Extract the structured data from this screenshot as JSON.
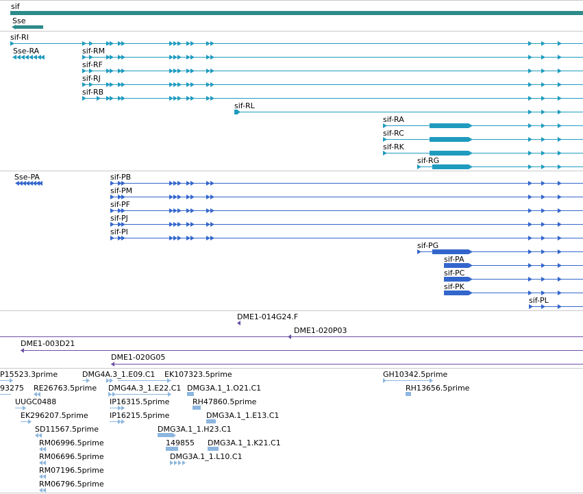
{
  "colors": {
    "gene": "#2e8b8b",
    "transcript": "#1f9bbf",
    "protein": "#3366cc",
    "bac": "#6a4fa3",
    "est": "#8cb6df",
    "separator": "#c8c8c8"
  },
  "genes": [
    {
      "label": "sif",
      "strand": "+"
    },
    {
      "label": "Sse",
      "strand": "-"
    }
  ],
  "transcripts": [
    {
      "label": "sif-RI",
      "strand": "+"
    },
    {
      "label": "Sse-RA",
      "strand": "-"
    },
    {
      "label": "sif-RM",
      "strand": "+"
    },
    {
      "label": "sif-RF",
      "strand": "+"
    },
    {
      "label": "sif-RJ",
      "strand": "+"
    },
    {
      "label": "sif-RB",
      "strand": "+"
    },
    {
      "label": "sif-RL",
      "strand": "+"
    },
    {
      "label": "sif-RA",
      "strand": "+"
    },
    {
      "label": "sif-RC",
      "strand": "+"
    },
    {
      "label": "sif-RK",
      "strand": "+"
    },
    {
      "label": "sif-RG",
      "strand": "+"
    }
  ],
  "proteins": [
    {
      "label": "Sse-PA",
      "strand": "-"
    },
    {
      "label": "sif-PB",
      "strand": "+"
    },
    {
      "label": "sif-PM",
      "strand": "+"
    },
    {
      "label": "sif-PF",
      "strand": "+"
    },
    {
      "label": "sif-PJ",
      "strand": "+"
    },
    {
      "label": "sif-PI",
      "strand": "+"
    },
    {
      "label": "sif-PG",
      "strand": "+"
    },
    {
      "label": "sif-PA",
      "strand": "+"
    },
    {
      "label": "sif-PC",
      "strand": "+"
    },
    {
      "label": "sif-PK",
      "strand": "+"
    },
    {
      "label": "sif-PL",
      "strand": "+"
    }
  ],
  "bacs": [
    {
      "label": "DME1-014G24.F",
      "strand": "-"
    },
    {
      "label": "DME1-020P03",
      "strand": "-"
    },
    {
      "label": "DME1-003D21",
      "strand": "-"
    },
    {
      "label": "DME1-020G05",
      "strand": "-"
    }
  ],
  "ests": [
    {
      "label": "P15523.3prime"
    },
    {
      "label": "DMG4A.3_1.E09.C1"
    },
    {
      "label": "EK107323.5prime"
    },
    {
      "label": "GH10342.5prime"
    },
    {
      "label": "93275"
    },
    {
      "label": "RE26763.5prime"
    },
    {
      "label": "DMG4A.3_1.E22.C1"
    },
    {
      "label": "DMG3A.1_1.O21.C1"
    },
    {
      "label": "RH13656.5prime"
    },
    {
      "label": "UUGC0488"
    },
    {
      "label": "IP16315.5prime"
    },
    {
      "label": "RH47860.5prime"
    },
    {
      "label": "EK296207.5prime"
    },
    {
      "label": "IP16215.5prime"
    },
    {
      "label": "DMG3A.1_1.E13.C1"
    },
    {
      "label": "SD11567.5prime"
    },
    {
      "label": "DMG3A.1_1.H23.C1"
    },
    {
      "label": "RM06996.5prime"
    },
    {
      "label": "149855"
    },
    {
      "label": "DMG3A.1_1.K21.C1"
    },
    {
      "label": "RM06696.5prime"
    },
    {
      "label": "DMG3A.1_1.L10.C1"
    },
    {
      "label": "RM07196.5prime"
    },
    {
      "label": "RM06796.5prime"
    }
  ]
}
